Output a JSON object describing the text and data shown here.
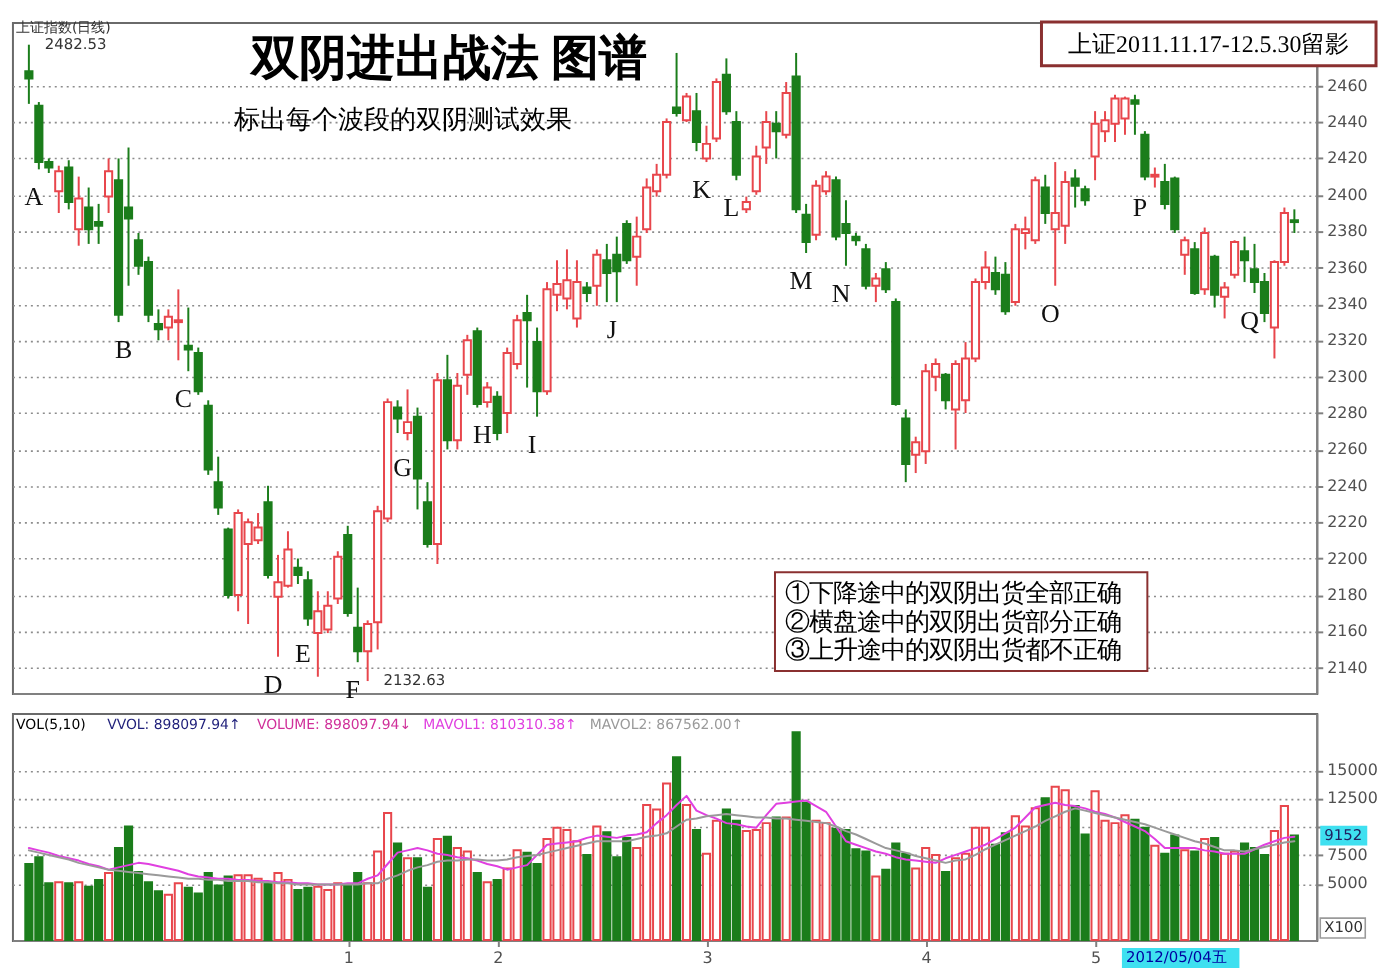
{
  "chart_data": [
    {
      "type": "candlestick",
      "title": "双阴进出战法 图谱",
      "subtitle": "标出每个波段的双阴测试效果",
      "categories": [
        null,
        null,
        null,
        null,
        null,
        null,
        null,
        null,
        null,
        null,
        null,
        null,
        null,
        null,
        null,
        null,
        null,
        null,
        null,
        null,
        null,
        null,
        null,
        null,
        null,
        null,
        null,
        null,
        null,
        null,
        null,
        null,
        "1",
        null,
        null,
        null,
        null,
        null,
        null,
        null,
        null,
        null,
        null,
        null,
        null,
        null,
        null,
        "2",
        null,
        null,
        null,
        null,
        null,
        null,
        null,
        null,
        null,
        null,
        null,
        null,
        null,
        null,
        null,
        null,
        null,
        null,
        null,
        null,
        "3",
        null,
        null,
        null,
        null,
        null,
        null,
        null,
        null,
        null,
        null,
        null,
        null,
        null,
        null,
        null,
        null,
        null,
        null,
        null,
        null,
        null,
        "4",
        null,
        null,
        null,
        null,
        null,
        null,
        null,
        null,
        null,
        null,
        null,
        null,
        null,
        null,
        null,
        null,
        "5",
        null,
        null,
        null,
        null,
        null,
        null,
        null,
        null,
        null,
        null,
        null,
        null,
        null,
        null,
        null,
        null,
        null,
        null,
        null,
        null
      ],
      "ohlc": [
        [
          2468,
          2482.53,
          2450,
          2464
        ],
        [
          2449,
          2451,
          2414,
          2418
        ],
        [
          2418,
          2420,
          2412,
          2415
        ],
        [
          2402,
          2416,
          2390,
          2413
        ],
        [
          2415,
          2419,
          2392,
          2396
        ],
        [
          2381,
          2410,
          2372,
          2398
        ],
        [
          2393,
          2404,
          2373,
          2381
        ],
        [
          2385,
          2395,
          2373,
          2383
        ],
        [
          2399,
          2420,
          2390,
          2413
        ],
        [
          2408,
          2420,
          2330,
          2334
        ],
        [
          2393,
          2426,
          2350,
          2387
        ],
        [
          2375,
          2379,
          2356,
          2361
        ],
        [
          2363,
          2366,
          2330,
          2334
        ],
        [
          2329,
          2337,
          2320,
          2326
        ],
        [
          2327,
          2337,
          2320,
          2333
        ],
        [
          2330,
          2348,
          2309,
          2331
        ],
        [
          2317,
          2338,
          2303,
          2315
        ],
        [
          2313,
          2316,
          2290,
          2292
        ],
        [
          2284,
          2287,
          2246,
          2249
        ],
        [
          2242,
          2256,
          2224,
          2228
        ],
        [
          2216,
          2217,
          2178,
          2180
        ],
        [
          2180,
          2227,
          2171,
          2225
        ],
        [
          2208,
          2222,
          2164,
          2220
        ],
        [
          2210,
          2225,
          2208,
          2217
        ],
        [
          2231,
          2240,
          2189,
          2191
        ],
        [
          2179,
          2202,
          2146,
          2187
        ],
        [
          2185,
          2215,
          2184,
          2205
        ],
        [
          2195,
          2200,
          2186,
          2191
        ],
        [
          2188,
          2193,
          2163,
          2167
        ],
        [
          2159,
          2182,
          2135,
          2171
        ],
        [
          2161,
          2182,
          2159,
          2174
        ],
        [
          2178,
          2204,
          2175,
          2201
        ],
        [
          2213,
          2218,
          2168,
          2170
        ],
        [
          2162,
          2184,
          2143,
          2149
        ],
        [
          2149,
          2166,
          2132.63,
          2164
        ],
        [
          2165,
          2229,
          2150,
          2226
        ],
        [
          2222,
          2288,
          2220,
          2286
        ],
        [
          2283,
          2287,
          2269,
          2277
        ],
        [
          2269,
          2293,
          2265,
          2275
        ],
        [
          2278,
          2283,
          2227,
          2244
        ],
        [
          2231,
          2242,
          2206,
          2208
        ],
        [
          2208,
          2302,
          2197,
          2298
        ],
        [
          2298,
          2312,
          2260,
          2265
        ],
        [
          2265,
          2302,
          2260,
          2295
        ],
        [
          2301,
          2323,
          2290,
          2320
        ],
        [
          2325,
          2327,
          2283,
          2285
        ],
        [
          2286,
          2297,
          2283,
          2294
        ],
        [
          2289,
          2292,
          2265,
          2269
        ],
        [
          2280,
          2316,
          2269,
          2313
        ],
        [
          2307,
          2334,
          2304,
          2331
        ],
        [
          2335,
          2345,
          2294,
          2331
        ],
        [
          2319,
          2327,
          2278,
          2292
        ],
        [
          2292,
          2352,
          2290,
          2348
        ],
        [
          2345,
          2364,
          2336,
          2351
        ],
        [
          2343,
          2370,
          2337,
          2353
        ],
        [
          2332,
          2364,
          2327,
          2352
        ],
        [
          2349,
          2352,
          2341,
          2346
        ],
        [
          2350,
          2370,
          2339,
          2367
        ],
        [
          2364,
          2373,
          2341,
          2357
        ],
        [
          2367,
          2377,
          2341,
          2358
        ],
        [
          2384,
          2386,
          2362,
          2364
        ],
        [
          2366,
          2388,
          2350,
          2377
        ],
        [
          2381,
          2409,
          2379,
          2404
        ],
        [
          2402,
          2417,
          2399,
          2411
        ],
        [
          2411,
          2442,
          2409,
          2440
        ],
        [
          2448,
          2478,
          2443,
          2445
        ],
        [
          2441,
          2456,
          2440,
          2454
        ],
        [
          2446,
          2456,
          2424,
          2429
        ],
        [
          2420,
          2438,
          2418,
          2428
        ],
        [
          2431,
          2464,
          2429,
          2462
        ],
        [
          2466,
          2475,
          2444,
          2446
        ],
        [
          2440,
          2446,
          2408,
          2411
        ],
        [
          2392,
          2399,
          2390,
          2396
        ],
        [
          2402,
          2427,
          2400,
          2421
        ],
        [
          2426,
          2446,
          2417,
          2440
        ],
        [
          2439,
          2446,
          2420,
          2435
        ],
        [
          2433,
          2462,
          2431,
          2456
        ],
        [
          2465,
          2478,
          2390,
          2392
        ],
        [
          2389,
          2395,
          2368,
          2374
        ],
        [
          2378,
          2408,
          2375,
          2405
        ],
        [
          2402,
          2413,
          2400,
          2410
        ],
        [
          2408,
          2410,
          2375,
          2377
        ],
        [
          2384,
          2397,
          2361,
          2379
        ],
        [
          2377,
          2379,
          2372,
          2375
        ],
        [
          2370,
          2373,
          2348,
          2350
        ],
        [
          2350,
          2357,
          2341,
          2354
        ],
        [
          2359,
          2363,
          2346,
          2348
        ],
        [
          2341,
          2343,
          2284,
          2285
        ],
        [
          2277,
          2282,
          2242,
          2252
        ],
        [
          2257,
          2267,
          2247,
          2264
        ],
        [
          2259,
          2307,
          2252,
          2303
        ],
        [
          2300,
          2310,
          2292,
          2307
        ],
        [
          2301,
          2302,
          2282,
          2287
        ],
        [
          2282,
          2309,
          2260,
          2307
        ],
        [
          2287,
          2319,
          2280,
          2310
        ],
        [
          2310,
          2354,
          2308,
          2352
        ],
        [
          2352,
          2369,
          2348,
          2360
        ],
        [
          2357,
          2366,
          2345,
          2348
        ],
        [
          2356,
          2363,
          2334,
          2336
        ],
        [
          2341,
          2384,
          2339,
          2381
        ],
        [
          2379,
          2388,
          2370,
          2381
        ],
        [
          2375,
          2410,
          2373,
          2408
        ],
        [
          2404,
          2411,
          2384,
          2390
        ],
        [
          2381,
          2418,
          2350,
          2390
        ],
        [
          2383,
          2413,
          2373,
          2407
        ],
        [
          2409,
          2414,
          2393,
          2405
        ],
        [
          2403,
          2405,
          2394,
          2397
        ],
        [
          2421,
          2446,
          2408,
          2439
        ],
        [
          2435,
          2446,
          2429,
          2441
        ],
        [
          2439,
          2455,
          2429,
          2453
        ],
        [
          2442,
          2454,
          2433,
          2453
        ],
        [
          2452,
          2455,
          2433,
          2450
        ],
        [
          2433,
          2435,
          2408,
          2410
        ],
        [
          2410,
          2415,
          2404,
          2411
        ],
        [
          2407,
          2417,
          2392,
          2395
        ],
        [
          2409,
          2410,
          2379,
          2381
        ],
        [
          2367,
          2377,
          2356,
          2375
        ],
        [
          2370,
          2374,
          2345,
          2346
        ],
        [
          2348,
          2382,
          2345,
          2379
        ],
        [
          2366,
          2367,
          2338,
          2345
        ],
        [
          2344,
          2352,
          2332,
          2349
        ],
        [
          2356,
          2375,
          2354,
          2374
        ],
        [
          2369,
          2377,
          2352,
          2364
        ],
        [
          2359,
          2373,
          2346,
          2352
        ],
        [
          2352,
          2357,
          2330,
          2335
        ],
        [
          2327,
          2364,
          2310,
          2363
        ],
        [
          2363,
          2393,
          2361,
          2390
        ],
        [
          2386,
          2392,
          2379,
          2385
        ]
      ],
      "colors": [
        "#1b7d1b",
        "#1b7d1b",
        "#1b7d1b",
        "#e8464c",
        "#1b7d1b",
        "#e8464c",
        "#1b7d1b",
        "#1b7d1b",
        "#e8464c",
        "#1b7d1b",
        "#1b7d1b",
        "#1b7d1b",
        "#1b7d1b",
        "#1b7d1b",
        "#e8464c",
        "#e8464c",
        "#1b7d1b",
        "#1b7d1b",
        "#1b7d1b",
        "#1b7d1b",
        "#1b7d1b",
        "#e8464c",
        "#e8464c",
        "#e8464c",
        "#1b7d1b",
        "#e8464c",
        "#e8464c",
        "#1b7d1b",
        "#1b7d1b",
        "#e8464c",
        "#e8464c",
        "#e8464c",
        "#1b7d1b",
        "#1b7d1b",
        "#e8464c",
        "#e8464c",
        "#e8464c",
        "#1b7d1b",
        "#e8464c",
        "#1b7d1b",
        "#1b7d1b",
        "#e8464c",
        "#1b7d1b",
        "#e8464c",
        "#e8464c",
        "#1b7d1b",
        "#e8464c",
        "#1b7d1b",
        "#e8464c",
        "#e8464c",
        "#1b7d1b",
        "#1b7d1b",
        "#e8464c",
        "#e8464c",
        "#e8464c",
        "#e8464c",
        "#1b7d1b",
        "#e8464c",
        "#1b7d1b",
        "#1b7d1b",
        "#1b7d1b",
        "#e8464c",
        "#e8464c",
        "#e8464c",
        "#e8464c",
        "#1b7d1b",
        "#e8464c",
        "#1b7d1b",
        "#e8464c",
        "#e8464c",
        "#1b7d1b",
        "#1b7d1b",
        "#e8464c",
        "#e8464c",
        "#e8464c",
        "#1b7d1b",
        "#e8464c",
        "#1b7d1b",
        "#1b7d1b",
        "#e8464c",
        "#e8464c",
        "#1b7d1b",
        "#1b7d1b",
        "#1b7d1b",
        "#1b7d1b",
        "#e8464c",
        "#1b7d1b",
        "#1b7d1b",
        "#1b7d1b",
        "#e8464c",
        "#e8464c",
        "#e8464c",
        "#1b7d1b",
        "#e8464c",
        "#e8464c",
        "#e8464c",
        "#e8464c",
        "#1b7d1b",
        "#1b7d1b",
        "#e8464c",
        "#e8464c",
        "#e8464c",
        "#1b7d1b",
        "#e8464c",
        "#e8464c",
        "#1b7d1b",
        "#1b7d1b",
        "#e8464c",
        "#e8464c",
        "#e8464c",
        "#e8464c",
        "#1b7d1b",
        "#1b7d1b",
        "#e8464c",
        "#1b7d1b",
        "#1b7d1b",
        "#e8464c",
        "#1b7d1b",
        "#e8464c",
        "#1b7d1b",
        "#e8464c",
        "#e8464c",
        "#1b7d1b",
        "#1b7d1b",
        "#1b7d1b",
        "#e8464c",
        "#e8464c",
        "#1b7d1b"
      ],
      "ylim": [
        2126,
        2495
      ],
      "yticks": [
        2140,
        2160,
        2180,
        2200,
        2220,
        2240,
        2260,
        2280,
        2300,
        2320,
        2340,
        2360,
        2380,
        2400,
        2420,
        2440,
        2460
      ],
      "grid": "y",
      "tick_labels": "y",
      "annotations": [
        "上证指数(日线)",
        "上证2011.11.17-12.5.30留影",
        "①下降途中的双阴出货全部正确",
        "②横盘途中的双阴出货部分正确",
        "③上升途中的双阴出货都不正确",
        "2482.53",
        "2132.63",
        "A",
        "B",
        "C",
        "D",
        "E",
        "F",
        "G",
        "H",
        "I",
        "J",
        "K",
        "L",
        "M",
        "N",
        "O",
        "P",
        "Q"
      ]
    },
    {
      "type": "bar",
      "title": "VOL(5,10)",
      "categories": [
        null,
        null,
        null,
        null,
        null,
        null,
        null,
        null,
        null,
        null,
        null,
        null,
        null,
        null,
        null,
        null,
        null,
        null,
        null,
        null,
        null,
        null,
        null,
        null,
        null,
        null,
        null,
        null,
        null,
        null,
        null,
        null,
        "1",
        null,
        null,
        null,
        null,
        null,
        null,
        null,
        null,
        null,
        null,
        null,
        null,
        null,
        null,
        "2",
        null,
        null,
        null,
        null,
        null,
        null,
        null,
        null,
        null,
        null,
        null,
        null,
        null,
        null,
        null,
        null,
        null,
        null,
        null,
        null,
        "3",
        null,
        null,
        null,
        null,
        null,
        null,
        null,
        null,
        null,
        null,
        null,
        null,
        null,
        null,
        null,
        null,
        null,
        null,
        null,
        null,
        null,
        "4",
        null,
        null,
        null,
        null,
        null,
        null,
        null,
        null,
        null,
        null,
        null,
        null,
        null,
        null,
        null,
        null,
        "5",
        null,
        null,
        null,
        null,
        null,
        null,
        null,
        null,
        null,
        null,
        null,
        null,
        null,
        null,
        null,
        null,
        null,
        null,
        null,
        null
      ],
      "series": [
        {
          "type": "bar",
          "values": [
            6700,
            7300,
            5000,
            5100,
            5000,
            5100,
            4700,
            5300,
            5900,
            8100,
            10000,
            6000,
            5100,
            4300,
            4000,
            5000,
            4600,
            4100,
            5900,
            4800,
            5600,
            5700,
            5700,
            5400,
            5000,
            5900,
            5300,
            4400,
            4600,
            4700,
            4400,
            5000,
            4800,
            5900,
            5000,
            7800,
            11200,
            8500,
            7200,
            7200,
            4600,
            8900,
            9100,
            8100,
            7800,
            5900,
            5100,
            5300,
            6300,
            7900,
            7700,
            6700,
            8900,
            9900,
            9700,
            8700,
            7500,
            10000,
            9500,
            7300,
            9000,
            8100,
            11900,
            11500,
            13800,
            16100,
            11900,
            9700,
            7600,
            10500,
            11500,
            10500,
            9600,
            9700,
            10300,
            10800,
            10800,
            18300,
            12100,
            10500,
            10300,
            9800,
            9700,
            8000,
            7800,
            5600,
            6200,
            8500,
            7600,
            6300,
            8100,
            7500,
            6000,
            7200,
            7600,
            9900,
            9900,
            8400,
            9400,
            10900,
            10000,
            11600,
            12500,
            13500,
            13200,
            11800,
            9300,
            13100,
            10500,
            10300,
            11000,
            10600,
            9900,
            8300,
            7600,
            9200,
            7900,
            7800,
            8900,
            9000,
            7600,
            7800,
            8500,
            8100,
            7500,
            9600,
            11800,
            9200
          ],
          "colors": [
            "#1b7d1b",
            "#1b7d1b",
            "#1b7d1b",
            "#e8464c",
            "#1b7d1b",
            "#e8464c",
            "#1b7d1b",
            "#1b7d1b",
            "#e8464c",
            "#1b7d1b",
            "#1b7d1b",
            "#1b7d1b",
            "#1b7d1b",
            "#1b7d1b",
            "#e8464c",
            "#e8464c",
            "#1b7d1b",
            "#1b7d1b",
            "#1b7d1b",
            "#1b7d1b",
            "#1b7d1b",
            "#e8464c",
            "#e8464c",
            "#e8464c",
            "#1b7d1b",
            "#e8464c",
            "#e8464c",
            "#1b7d1b",
            "#1b7d1b",
            "#e8464c",
            "#e8464c",
            "#e8464c",
            "#1b7d1b",
            "#1b7d1b",
            "#e8464c",
            "#e8464c",
            "#e8464c",
            "#1b7d1b",
            "#e8464c",
            "#1b7d1b",
            "#1b7d1b",
            "#e8464c",
            "#1b7d1b",
            "#e8464c",
            "#e8464c",
            "#1b7d1b",
            "#e8464c",
            "#1b7d1b",
            "#e8464c",
            "#e8464c",
            "#1b7d1b",
            "#1b7d1b",
            "#e8464c",
            "#e8464c",
            "#e8464c",
            "#e8464c",
            "#1b7d1b",
            "#e8464c",
            "#1b7d1b",
            "#1b7d1b",
            "#1b7d1b",
            "#e8464c",
            "#e8464c",
            "#e8464c",
            "#e8464c",
            "#1b7d1b",
            "#e8464c",
            "#1b7d1b",
            "#e8464c",
            "#e8464c",
            "#1b7d1b",
            "#1b7d1b",
            "#e8464c",
            "#e8464c",
            "#e8464c",
            "#1b7d1b",
            "#e8464c",
            "#1b7d1b",
            "#1b7d1b",
            "#e8464c",
            "#e8464c",
            "#1b7d1b",
            "#1b7d1b",
            "#1b7d1b",
            "#1b7d1b",
            "#e8464c",
            "#1b7d1b",
            "#1b7d1b",
            "#1b7d1b",
            "#e8464c",
            "#e8464c",
            "#e8464c",
            "#1b7d1b",
            "#e8464c",
            "#e8464c",
            "#e8464c",
            "#e8464c",
            "#1b7d1b",
            "#1b7d1b",
            "#e8464c",
            "#e8464c",
            "#e8464c",
            "#1b7d1b",
            "#e8464c",
            "#e8464c",
            "#1b7d1b",
            "#1b7d1b",
            "#e8464c",
            "#e8464c",
            "#e8464c",
            "#e8464c",
            "#1b7d1b",
            "#1b7d1b",
            "#e8464c",
            "#1b7d1b",
            "#1b7d1b",
            "#e8464c",
            "#1b7d1b",
            "#e8464c",
            "#1b7d1b",
            "#e8464c",
            "#e8464c",
            "#1b7d1b",
            "#1b7d1b",
            "#1b7d1b",
            "#e8464c",
            "#e8464c",
            "#1b7d1b"
          ]
        },
        {
          "type": "line",
          "name": "MAVOL1: 810310.38↑",
          "color": "#e040e0",
          "values": [
            8100,
            7900,
            7700,
            7400,
            7200,
            7000,
            6700,
            6500,
            6200,
            6400,
            6600,
            6800,
            6700,
            6500,
            6300,
            6100,
            5800,
            5600,
            5500,
            5400,
            5400,
            5300,
            5300,
            5200,
            5200,
            5100,
            5100,
            5000,
            5000,
            4900,
            4900,
            4900,
            5000,
            5000,
            5400,
            5700,
            6700,
            7700,
            7900,
            8100,
            7900,
            7600,
            7500,
            7300,
            7200,
            7000,
            6700,
            6500,
            6200,
            6400,
            6600,
            7500,
            8400,
            8500,
            8600,
            8700,
            9000,
            9200,
            9100,
            9000,
            9200,
            9300,
            9500,
            10300,
            11000,
            11900,
            12700,
            11400,
            11000,
            10700,
            10300,
            10200,
            10000,
            9900,
            11000,
            12000,
            12100,
            12200,
            12300,
            11800,
            11300,
            10000,
            8700,
            8400,
            8100,
            7800,
            7600,
            7300,
            7100,
            7000,
            6900,
            6800,
            7200,
            7500,
            7800,
            8100,
            8400,
            8900,
            9400,
            9900,
            10800,
            11700,
            11900,
            12100,
            11900,
            11800,
            11600,
            11300,
            11100,
            10800,
            10400,
            10000,
            9600,
            8900,
            8100,
            8100,
            8100,
            8100,
            7900,
            7800,
            7600,
            7600,
            7600,
            8000,
            8400,
            8700,
            9000,
            9100
          ]
        },
        {
          "type": "line",
          "name": "MAVOL2: 867562.00↑",
          "color": "#9a9a9a",
          "values": [
            7900,
            7700,
            7500,
            7300,
            7100,
            6800,
            6600,
            6400,
            6200,
            6100,
            6000,
            5900,
            5800,
            5700,
            5600,
            5500,
            5400,
            5400,
            5300,
            5300,
            5200,
            5200,
            5200,
            5100,
            5100,
            5000,
            5000,
            4900,
            4900,
            4900,
            4900,
            4900,
            4900,
            4900,
            5000,
            5000,
            5400,
            5700,
            6100,
            6400,
            6600,
            6900,
            7000,
            7000,
            7100,
            7100,
            7000,
            7000,
            7100,
            7300,
            7400,
            7500,
            7700,
            7900,
            8100,
            8300,
            8500,
            8700,
            8700,
            8700,
            8700,
            8900,
            9100,
            9200,
            9400,
            10000,
            10600,
            10700,
            10900,
            11000,
            11100,
            11000,
            10900,
            10800,
            10800,
            10700,
            10700,
            10600,
            10500,
            10400,
            10300,
            10000,
            9600,
            9300,
            8900,
            8500,
            8100,
            7900,
            7700,
            7400,
            7200,
            7000,
            6800,
            7000,
            7100,
            7500,
            8000,
            8400,
            8800,
            9200,
            9600,
            10000,
            10500,
            10900,
            11300,
            11600,
            11400,
            11200,
            11000,
            10800,
            10600,
            10400,
            10200,
            9900,
            9600,
            9300,
            9000,
            8700,
            8500,
            8200,
            7900,
            7900,
            7800,
            8000,
            8200,
            8400,
            8600,
            8700
          ]
        }
      ],
      "ylim": [
        0,
        20000
      ],
      "yticks": [
        5000,
        7500,
        {
          "value": 10000,
          "label": null
        },
        12500,
        15000
      ],
      "ylabel": "X100",
      "grid": "y",
      "annotations": [
        "VVOL: 898097.94↑",
        "VOLUME: 898097.94↓",
        "9152",
        "2012/05/04五"
      ]
    }
  ]
}
